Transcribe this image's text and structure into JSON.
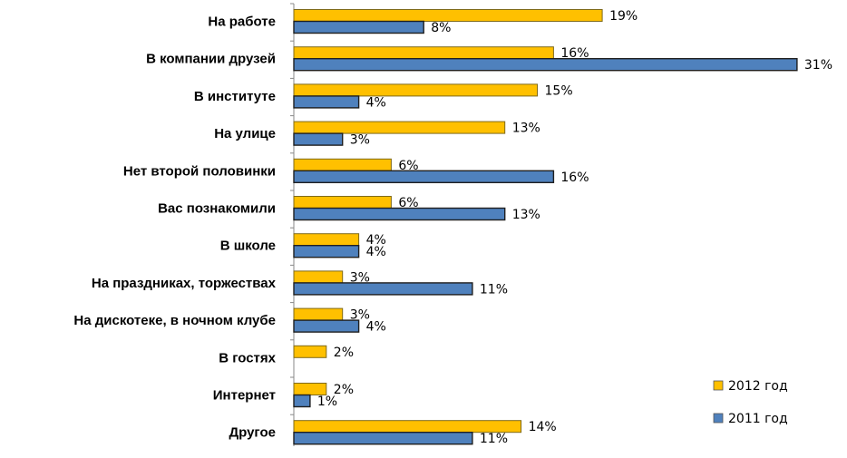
{
  "chart_data": {
    "type": "bar",
    "orientation": "horizontal",
    "categories": [
      "На работе",
      "В компании друзей",
      "В институте",
      "На улице",
      "Нет второй  половинки",
      "Вас познакомили",
      "В школе",
      "На праздниках, торжествах",
      "На дискотеке, в ночном клубе",
      "В гостях",
      "Интернет",
      "Другое"
    ],
    "series": [
      {
        "name": "2012 год",
        "color": "#FFC000",
        "values": [
          19,
          16,
          15,
          13,
          6,
          6,
          4,
          3,
          3,
          2,
          2,
          14
        ],
        "labels": [
          "19%",
          "16%",
          "15%",
          "13%",
          "6%",
          "6%",
          "4%",
          "3%",
          "3%",
          "2%",
          "2%",
          "14%"
        ]
      },
      {
        "name": "2011 год",
        "color": "#4F81BD",
        "values": [
          8,
          31,
          4,
          3,
          16,
          13,
          4,
          11,
          4,
          null,
          1,
          11
        ],
        "labels": [
          "8%",
          "31%",
          "4%",
          "3%",
          "16%",
          "13%",
          "4%",
          "11%",
          "4%",
          "",
          "1%",
          "11%"
        ]
      }
    ],
    "xlim": [
      0,
      31
    ],
    "grid": false,
    "legend_position": "bottom-right"
  }
}
